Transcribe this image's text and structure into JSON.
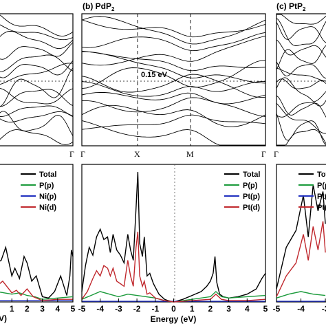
{
  "chart_data": [
    {
      "type": "line",
      "panel": "band-structure-left",
      "title": "",
      "k_labels": [
        "Γ"
      ],
      "fermi_level_ev": 0,
      "ylim": [
        -3,
        3
      ],
      "note_values": []
    },
    {
      "type": "line",
      "panel": "band-structure-middle",
      "title": "(b) PdP",
      "title_subscript": "2",
      "k_labels": [
        "Γ",
        "X",
        "M",
        "Γ"
      ],
      "k_positions": [
        0,
        0.5,
        1.0,
        1.5
      ],
      "gap_label": "0.15 eV",
      "fermi_level_ev": 0,
      "ylim": [
        -3,
        3
      ]
    },
    {
      "type": "line",
      "panel": "band-structure-right",
      "title": "(c) PtP",
      "title_subscript": "2",
      "k_labels": [
        "Γ"
      ]
    },
    {
      "type": "line",
      "panel": "dos-left",
      "xlabel": "",
      "x_ticks": [
        "1",
        "2",
        "3",
        "4",
        "5"
      ],
      "edge_fragment": "V)",
      "series": [
        {
          "name": "Total",
          "color": "#000000",
          "x": [
            0,
            0.3,
            0.6,
            1.0,
            1.2,
            1.5,
            1.8,
            2.0,
            2.3,
            2.6,
            3.0,
            3.4,
            3.8,
            4.2,
            4.6,
            4.8,
            4.9,
            5.0
          ],
          "y": [
            0.3,
            0.32,
            0.42,
            0.2,
            0.26,
            0.18,
            0.35,
            0.3,
            0.16,
            0.2,
            0.04,
            0.03,
            0.08,
            0.2,
            0.05,
            0.2,
            0.4,
            0.35
          ]
        },
        {
          "name": "P(p)",
          "color": "#1a9a3a",
          "x": [
            0,
            0.5,
            1.0,
            1.5,
            2.0,
            2.5,
            3.0,
            4.0,
            5.0
          ],
          "y": [
            0.08,
            0.07,
            0.06,
            0.07,
            0.05,
            0.04,
            0.02,
            0.03,
            0.04
          ]
        },
        {
          "name": "Ni(p)",
          "color": "#1f2fbf",
          "x": [
            0,
            5.0
          ],
          "y": [
            0.01,
            0.01
          ]
        },
        {
          "name": "Ni(d)",
          "color": "#c0282d",
          "x": [
            0,
            0.4,
            0.8,
            1.0,
            1.3,
            1.6,
            2.0,
            2.4,
            3.0,
            4.0,
            5.0
          ],
          "y": [
            0.12,
            0.16,
            0.1,
            0.07,
            0.09,
            0.05,
            0.1,
            0.04,
            0.01,
            0.02,
            0.02
          ]
        }
      ]
    },
    {
      "type": "line",
      "panel": "dos-middle",
      "xlabel": "Energy (eV)",
      "xlim": [
        -5,
        5
      ],
      "x_ticks": [
        "-5",
        "-4",
        "-3",
        "-2",
        "-1",
        "0",
        "1",
        "2",
        "3",
        "4",
        "5"
      ],
      "ylim": [
        0,
        1
      ],
      "series": [
        {
          "name": "Total",
          "color": "#000000",
          "x": [
            -5.0,
            -4.8,
            -4.6,
            -4.4,
            -4.2,
            -4.0,
            -3.8,
            -3.6,
            -3.45,
            -3.3,
            -3.1,
            -2.9,
            -2.7,
            -2.5,
            -2.35,
            -2.2,
            -2.05,
            -1.95,
            -1.85,
            -1.7,
            -1.6,
            -1.45,
            -1.3,
            -1.1,
            -0.8,
            -0.5,
            -0.3,
            0.0,
            0.5,
            1.0,
            1.5,
            1.8,
            2.0,
            2.15,
            2.25,
            2.35,
            2.5,
            2.7,
            3.0,
            3.5,
            4.0,
            4.5,
            4.8,
            5.0
          ],
          "y": [
            0.08,
            0.28,
            0.42,
            0.36,
            0.5,
            0.56,
            0.48,
            0.5,
            0.38,
            0.52,
            0.4,
            0.36,
            0.3,
            0.52,
            0.4,
            0.32,
            0.72,
            1.0,
            0.45,
            0.35,
            0.5,
            0.2,
            0.22,
            0.14,
            0.06,
            0.02,
            0.01,
            0.0,
            0.02,
            0.05,
            0.08,
            0.12,
            0.16,
            0.22,
            0.35,
            0.15,
            0.06,
            0.04,
            0.03,
            0.04,
            0.06,
            0.1,
            0.18,
            0.22
          ]
        },
        {
          "name": "P(p)",
          "color": "#1a9a3a",
          "x": [
            -5.0,
            -4.5,
            -4.0,
            -3.5,
            -3.0,
            -2.5,
            -2.0,
            -1.5,
            -1.0,
            -0.5,
            0.0,
            1.0,
            2.0,
            2.3,
            2.6,
            3.0,
            4.0,
            5.0
          ],
          "y": [
            0.02,
            0.05,
            0.08,
            0.06,
            0.04,
            0.06,
            0.05,
            0.04,
            0.03,
            0.01,
            0.0,
            0.02,
            0.04,
            0.08,
            0.04,
            0.03,
            0.04,
            0.05
          ]
        },
        {
          "name": "Pt(p)",
          "color": "#1f2fbf",
          "x": [
            -5.0,
            5.0
          ],
          "y": [
            0.005,
            0.005
          ]
        },
        {
          "name": "Pt(d)",
          "color": "#c0282d",
          "x": [
            -5.0,
            -4.7,
            -4.4,
            -4.2,
            -4.0,
            -3.8,
            -3.6,
            -3.45,
            -3.3,
            -3.1,
            -2.9,
            -2.7,
            -2.5,
            -2.35,
            -2.2,
            -2.05,
            -1.95,
            -1.85,
            -1.7,
            -1.6,
            -1.45,
            -1.3,
            -1.0,
            -0.5,
            0.0,
            1.0,
            2.0,
            2.3,
            2.6,
            3.0,
            4.0,
            5.0
          ],
          "y": [
            0.02,
            0.08,
            0.18,
            0.24,
            0.2,
            0.28,
            0.26,
            0.2,
            0.26,
            0.16,
            0.14,
            0.12,
            0.32,
            0.2,
            0.12,
            0.42,
            0.54,
            0.2,
            0.12,
            0.16,
            0.06,
            0.07,
            0.03,
            0.01,
            0.0,
            0.01,
            0.02,
            0.06,
            0.02,
            0.01,
            0.01,
            0.02
          ]
        }
      ]
    },
    {
      "type": "line",
      "panel": "dos-right",
      "x_ticks": [
        "-5",
        "-4",
        "-3",
        "-2"
      ],
      "series": [
        {
          "name": "Total",
          "color": "#000000",
          "x": [
            -5.0,
            -4.6,
            -4.2,
            -3.9,
            -3.7,
            -3.5,
            -3.3,
            -3.1,
            -3.0
          ],
          "y": [
            0.1,
            0.42,
            0.55,
            0.82,
            0.5,
            0.9,
            0.7,
            0.85,
            0.6
          ]
        },
        {
          "name": "P(p)",
          "color": "#1a9a3a",
          "x": [
            -5.0,
            -4.5,
            -4.0,
            -3.5,
            -3.0
          ],
          "y": [
            0.03,
            0.06,
            0.08,
            0.06,
            0.05
          ]
        },
        {
          "name": "Pt(p)",
          "color": "#1f2fbf",
          "x": [
            -5.0,
            -3.0
          ],
          "y": [
            0.005,
            0.005
          ]
        },
        {
          "name": "Pt(d)",
          "color": "#c0282d",
          "x": [
            -5.0,
            -4.6,
            -4.2,
            -3.9,
            -3.7,
            -3.5,
            -3.3,
            -3.1,
            -3.0
          ],
          "y": [
            0.04,
            0.2,
            0.3,
            0.52,
            0.32,
            0.58,
            0.4,
            0.62,
            0.38
          ]
        }
      ]
    }
  ],
  "legends": {
    "left": [
      "Total",
      "P(p)",
      "Ni(p)",
      "Ni(d)"
    ],
    "middle": [
      "Total",
      "P(p)",
      "Pt(p)",
      "Pt(d)"
    ],
    "right": [
      "Total",
      "P(p)",
      "Pt(p)",
      "Pt(d)"
    ]
  },
  "colors": {
    "total": "#000000",
    "pp": "#1a9a3a",
    "metal_p": "#1f2fbf",
    "metal_d": "#c0282d"
  }
}
